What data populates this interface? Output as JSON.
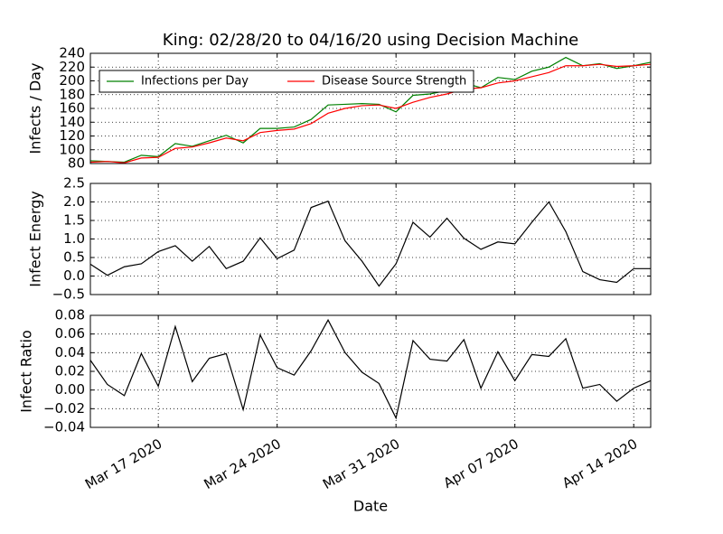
{
  "chart_data": [
    {
      "type": "line",
      "title": "King: 02/28/20 to 04/16/20 using Decision Machine",
      "ylabel": "Infects / Day",
      "x": [
        "2020-03-13",
        "2020-03-14",
        "2020-03-15",
        "2020-03-16",
        "2020-03-17",
        "2020-03-18",
        "2020-03-19",
        "2020-03-20",
        "2020-03-21",
        "2020-03-22",
        "2020-03-23",
        "2020-03-24",
        "2020-03-25",
        "2020-03-26",
        "2020-03-27",
        "2020-03-28",
        "2020-03-29",
        "2020-03-30",
        "2020-03-31",
        "2020-04-01",
        "2020-04-02",
        "2020-04-03",
        "2020-04-04",
        "2020-04-05",
        "2020-04-06",
        "2020-04-07",
        "2020-04-08",
        "2020-04-09",
        "2020-04-10",
        "2020-04-11",
        "2020-04-12",
        "2020-04-13",
        "2020-04-14",
        "2020-04-15"
      ],
      "series": [
        {
          "name": "Infections per Day",
          "color": "#008000",
          "values": [
            84,
            83,
            82,
            92,
            90,
            109,
            105,
            113,
            121,
            110,
            131,
            131,
            133,
            144,
            165,
            166,
            167,
            166,
            155,
            179,
            181,
            186,
            197,
            190,
            205,
            202,
            214,
            220,
            234,
            222,
            225,
            218,
            222,
            227
          ]
        },
        {
          "name": "Disease Source Strength",
          "color": "#ff0000",
          "values": [
            82,
            83,
            81,
            88,
            89,
            102,
            104,
            110,
            117,
            113,
            125,
            128,
            130,
            138,
            153,
            160,
            164,
            165,
            160,
            169,
            176,
            181,
            188,
            190,
            197,
            200,
            206,
            212,
            222,
            222,
            224,
            221,
            222,
            224
          ]
        }
      ],
      "xlim": [
        "2020-03-13",
        "2020-04-15"
      ],
      "xticks": [
        "2020-03-17",
        "2020-03-24",
        "2020-03-31",
        "2020-04-07",
        "2020-04-14"
      ],
      "ylim": [
        80,
        240
      ],
      "yticks": [
        80,
        100,
        120,
        140,
        160,
        180,
        200,
        220,
        240
      ],
      "grid": true,
      "legend": "upper left"
    },
    {
      "type": "line",
      "ylabel": "Infect Energy",
      "x": [
        "2020-03-13",
        "2020-03-14",
        "2020-03-15",
        "2020-03-16",
        "2020-03-17",
        "2020-03-18",
        "2020-03-19",
        "2020-03-20",
        "2020-03-21",
        "2020-03-22",
        "2020-03-23",
        "2020-03-24",
        "2020-03-25",
        "2020-03-26",
        "2020-03-27",
        "2020-03-28",
        "2020-03-29",
        "2020-03-30",
        "2020-03-31",
        "2020-04-01",
        "2020-04-02",
        "2020-04-03",
        "2020-04-04",
        "2020-04-05",
        "2020-04-06",
        "2020-04-07",
        "2020-04-08",
        "2020-04-09",
        "2020-04-10",
        "2020-04-11",
        "2020-04-12",
        "2020-04-13",
        "2020-04-14",
        "2020-04-15"
      ],
      "series": [
        {
          "color": "#000000",
          "values": [
            0.32,
            0.02,
            0.25,
            0.33,
            0.66,
            0.82,
            0.4,
            0.8,
            0.2,
            0.4,
            1.03,
            0.47,
            0.7,
            1.85,
            2.02,
            0.95,
            0.4,
            -0.27,
            0.33,
            1.45,
            1.05,
            1.56,
            1.02,
            0.72,
            0.92,
            0.87,
            1.45,
            2.0,
            1.2,
            0.12,
            -0.1,
            -0.17,
            0.2,
            0.2
          ]
        }
      ],
      "xlim": [
        "2020-03-13",
        "2020-04-15"
      ],
      "xticks": [
        "2020-03-17",
        "2020-03-24",
        "2020-03-31",
        "2020-04-07",
        "2020-04-14"
      ],
      "ylim": [
        -0.5,
        2.5
      ],
      "yticks": [
        {
          "value": -0.5,
          "label": "−0.5"
        },
        {
          "value": 0,
          "label": "0.0"
        },
        0.5,
        {
          "value": 1,
          "label": "1.0"
        },
        1.5,
        {
          "value": 2,
          "label": "2.0"
        },
        2.5
      ],
      "grid": true
    },
    {
      "type": "line",
      "ylabel": "Infect Ratio",
      "xlabel": "Date",
      "x": [
        "2020-03-13",
        "2020-03-14",
        "2020-03-15",
        "2020-03-16",
        "2020-03-17",
        "2020-03-18",
        "2020-03-19",
        "2020-03-20",
        "2020-03-21",
        "2020-03-22",
        "2020-03-23",
        "2020-03-24",
        "2020-03-25",
        "2020-03-26",
        "2020-03-27",
        "2020-03-28",
        "2020-03-29",
        "2020-03-30",
        "2020-03-31",
        "2020-04-01",
        "2020-04-02",
        "2020-04-03",
        "2020-04-04",
        "2020-04-05",
        "2020-04-06",
        "2020-04-07",
        "2020-04-08",
        "2020-04-09",
        "2020-04-10",
        "2020-04-11",
        "2020-04-12",
        "2020-04-13",
        "2020-04-14",
        "2020-04-15"
      ],
      "series": [
        {
          "color": "#000000",
          "values": [
            0.032,
            0.006,
            -0.006,
            0.039,
            0.004,
            0.068,
            0.009,
            0.034,
            0.039,
            -0.021,
            0.059,
            0.024,
            0.016,
            0.042,
            0.075,
            0.04,
            0.019,
            0.007,
            -0.03,
            0.053,
            0.033,
            0.031,
            0.054,
            0.002,
            0.041,
            0.01,
            0.038,
            0.036,
            0.055,
            0.002,
            0.006,
            -0.012,
            0.002,
            0.01
          ]
        }
      ],
      "xlim": [
        "2020-03-13",
        "2020-04-15"
      ],
      "xticks": [
        {
          "value": "2020-03-17",
          "label": "Mar 17 2020"
        },
        {
          "value": "2020-03-24",
          "label": "Mar 24 2020"
        },
        {
          "value": "2020-03-31",
          "label": "Mar 31 2020"
        },
        {
          "value": "2020-04-07",
          "label": "Apr 07 2020"
        },
        {
          "value": "2020-04-14",
          "label": "Apr 14 2020"
        }
      ],
      "ylim": [
        -0.04,
        0.08
      ],
      "yticks": [
        {
          "value": -0.04,
          "label": "−0.04"
        },
        {
          "value": -0.02,
          "label": "−0.02"
        },
        {
          "value": 0,
          "label": "0.00"
        },
        {
          "value": 0.02,
          "label": "0.02"
        },
        {
          "value": 0.04,
          "label": "0.04"
        },
        {
          "value": 0.06,
          "label": "0.06"
        },
        {
          "value": 0.08,
          "label": "0.08"
        }
      ],
      "grid": true
    }
  ]
}
